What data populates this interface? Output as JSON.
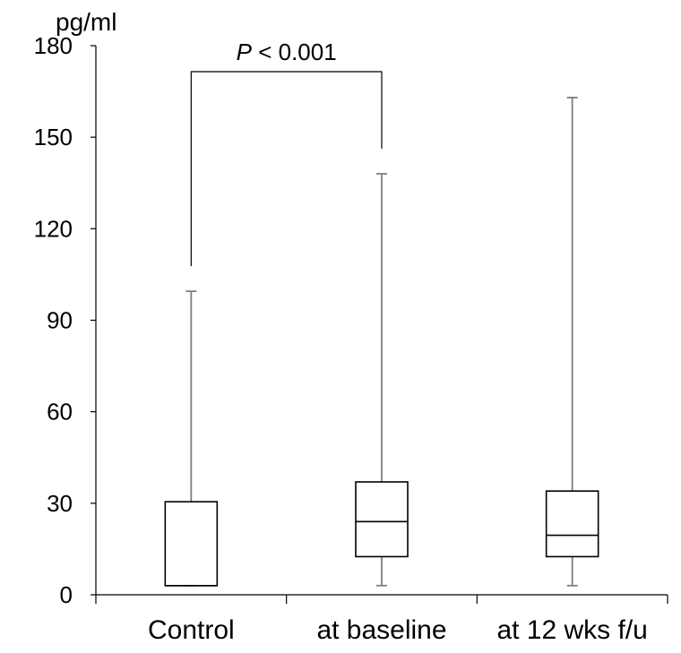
{
  "chart_data": {
    "type": "boxplot",
    "ylabel": "pg/ml",
    "ylim": [
      0,
      180
    ],
    "yticks": [
      0,
      30,
      60,
      90,
      120,
      150,
      180
    ],
    "categories": [
      "Control",
      "at baseline",
      "at 12 wks f/u"
    ],
    "boxes": [
      {
        "category": "Control",
        "min": 3,
        "q1": 3,
        "median": 3,
        "q3": 30.5,
        "max": 99.5
      },
      {
        "category": "at baseline",
        "min": 3,
        "q1": 12.5,
        "median": 24,
        "q3": 37,
        "max": 138
      },
      {
        "category": "at 12 wks f/u",
        "min": 3,
        "q1": 12.5,
        "median": 19.5,
        "q3": 34,
        "max": 163
      }
    ],
    "annotation": {
      "p_symbol": "P",
      "text": " < 0.001",
      "from": "Control",
      "to": "at baseline"
    },
    "colors": {
      "line": "#000000",
      "whisker": "#7f7f7f",
      "box_fill": "#ffffff"
    }
  }
}
